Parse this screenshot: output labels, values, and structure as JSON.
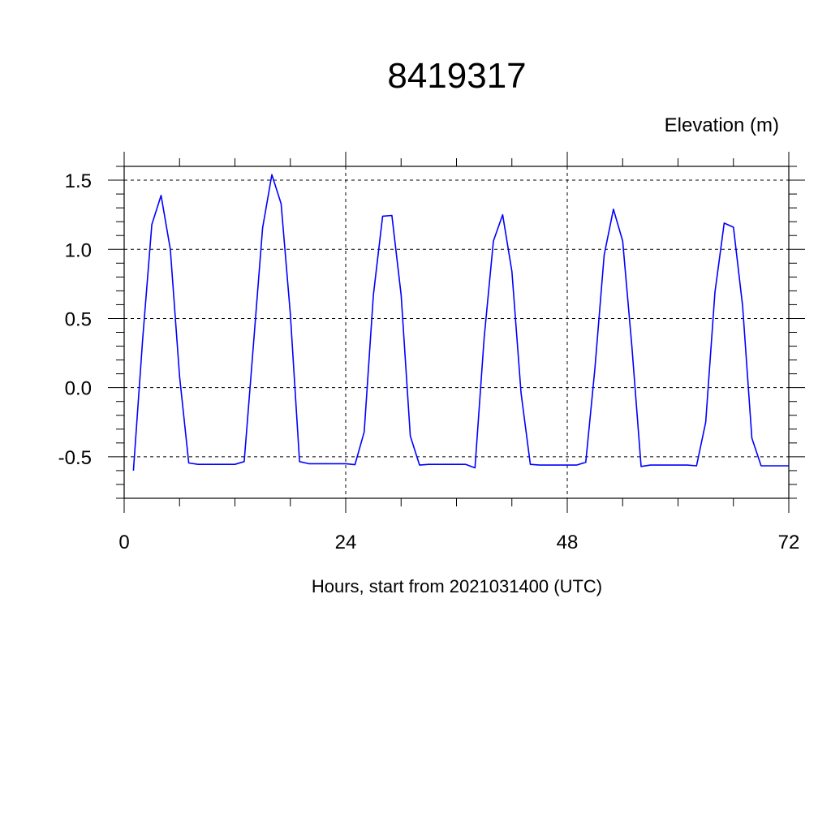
{
  "chart_data": {
    "type": "line",
    "title": "8419317",
    "ylabel": "Elevation (m)",
    "xlabel": "Hours, start from 2021031400 (UTC)",
    "xlim": [
      0,
      72
    ],
    "ylim": [
      -0.8,
      1.6
    ],
    "x_ticks": [
      0,
      24,
      48,
      72
    ],
    "x_tick_labels": [
      "0",
      "24",
      "48",
      "72"
    ],
    "x_minor_step": 6,
    "y_ticks": [
      -0.5,
      0.0,
      0.5,
      1.0,
      1.5
    ],
    "y_tick_labels": [
      "-0.5",
      "0.0",
      "0.5",
      "1.0",
      "1.5"
    ],
    "y_minor_step": 0.1,
    "grid": true,
    "grid_style": "dashed",
    "line_color": "#0000ff",
    "series": [
      {
        "x": [
          1,
          2,
          3,
          4,
          5,
          6,
          7,
          8,
          9,
          10,
          11,
          12,
          13,
          14,
          15,
          16,
          17,
          18,
          19,
          20,
          21,
          22,
          23,
          24,
          25,
          26,
          27,
          28,
          29,
          30,
          31,
          32,
          33,
          34,
          35,
          36,
          37,
          38,
          39,
          40,
          41,
          42,
          43,
          44,
          45,
          46,
          47,
          48,
          49,
          50,
          51,
          52,
          53,
          54,
          55,
          56,
          57,
          58,
          59,
          60,
          61,
          62,
          63,
          64,
          65,
          66,
          67,
          68,
          69,
          70,
          71,
          72
        ],
        "values": [
          -0.6,
          0.35,
          1.18,
          1.39,
          1.0,
          0.08,
          -0.545,
          -0.555,
          -0.555,
          -0.555,
          -0.555,
          -0.555,
          -0.535,
          0.31,
          1.155,
          1.54,
          1.33,
          0.53,
          -0.535,
          -0.55,
          -0.55,
          -0.55,
          -0.55,
          -0.55,
          -0.557,
          -0.32,
          0.67,
          1.24,
          1.245,
          0.67,
          -0.35,
          -0.56,
          -0.555,
          -0.555,
          -0.555,
          -0.555,
          -0.555,
          -0.58,
          0.36,
          1.06,
          1.25,
          0.84,
          -0.04,
          -0.555,
          -0.56,
          -0.56,
          -0.56,
          -0.56,
          -0.56,
          -0.54,
          0.14,
          0.96,
          1.29,
          1.06,
          0.3,
          -0.57,
          -0.56,
          -0.56,
          -0.56,
          -0.56,
          -0.56,
          -0.565,
          -0.25,
          0.69,
          1.19,
          1.16,
          0.59,
          -0.365,
          -0.565,
          -0.565,
          -0.565,
          -0.565
        ]
      }
    ]
  }
}
